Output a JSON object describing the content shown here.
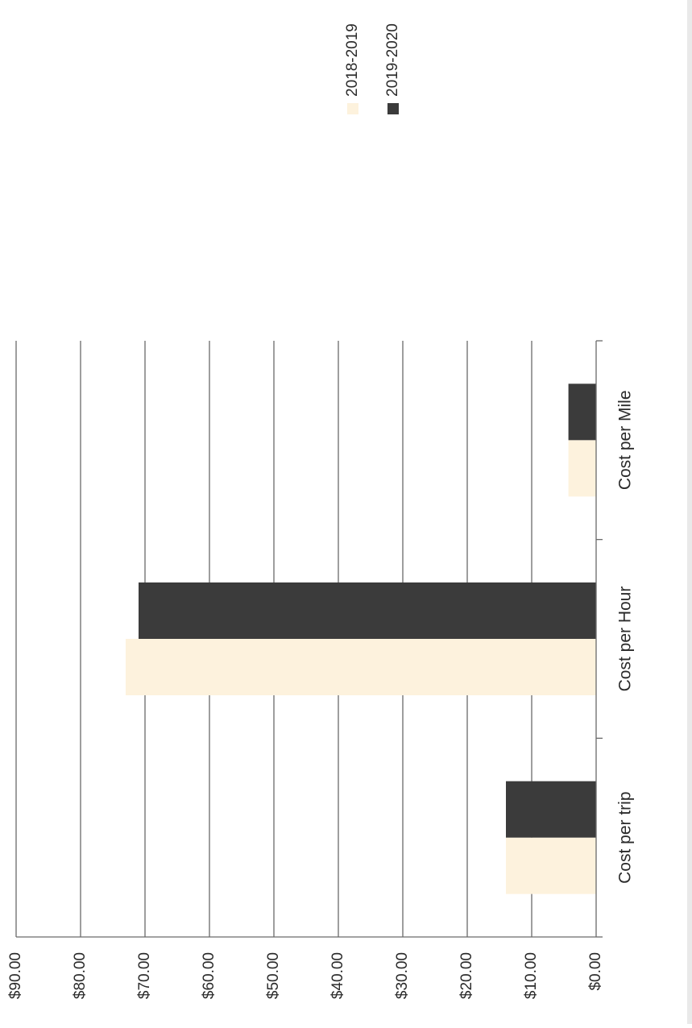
{
  "chart_data": {
    "type": "bar",
    "orientation": "vertical-bars, page rotated 90 degrees",
    "categories": [
      "Cost per trip",
      "Cost per Hour",
      "Cost per Mile"
    ],
    "series": [
      {
        "name": "2018-2019",
        "values": [
          14.0,
          73.0,
          4.3
        ],
        "color": "#fdf2dd"
      },
      {
        "name": "2019-2020",
        "values": [
          14.0,
          71.0,
          4.3
        ],
        "color": "#3b3b3b"
      }
    ],
    "ylim": [
      0,
      90
    ],
    "yticks": [
      "$0.00",
      "$10.00",
      "$20.00",
      "$30.00",
      "$40.00",
      "$50.00",
      "$60.00",
      "$70.00",
      "$80.00",
      "$90.00"
    ],
    "grid": true,
    "legend_position": "top-right"
  },
  "colors": {
    "gridline": "#6a6a6a",
    "axis": "#6a6a6a"
  }
}
